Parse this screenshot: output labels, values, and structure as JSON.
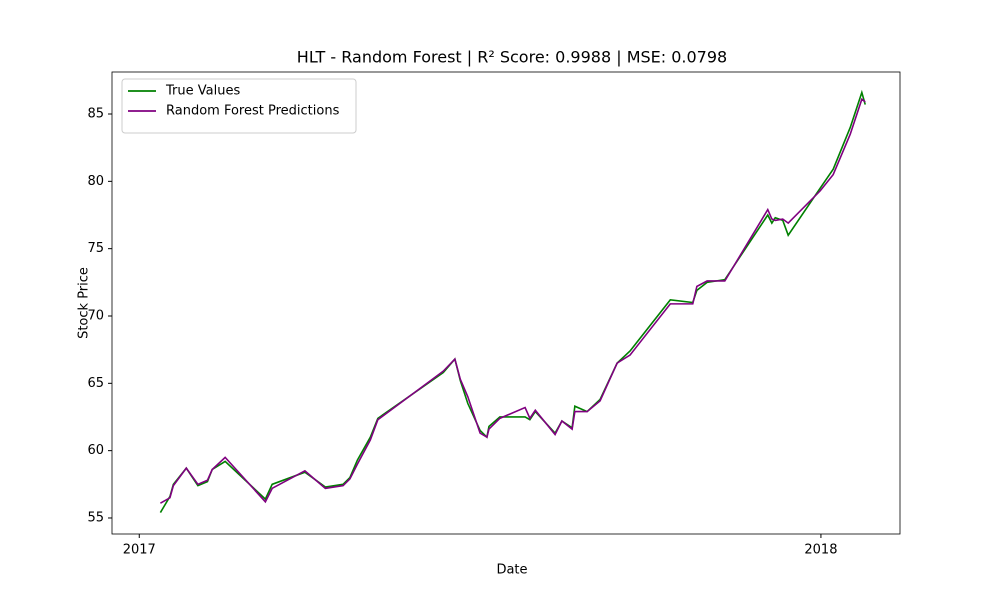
{
  "chart_data": {
    "type": "line",
    "title": "HLT - Random Forest | R² Score: 0.9988 | MSE: 0.0798",
    "x_label": "Date",
    "y_label": "Stock Price",
    "x": [
      2017.031,
      2017.045,
      2017.05,
      2017.069,
      2017.086,
      2017.1,
      2017.107,
      2017.126,
      2017.185,
      2017.195,
      2017.243,
      2017.273,
      2017.299,
      2017.309,
      2017.32,
      2017.339,
      2017.35,
      2017.446,
      2017.463,
      2017.471,
      2017.482,
      2017.5,
      2017.51,
      2017.513,
      2017.529,
      2017.566,
      2017.573,
      2017.581,
      2017.61,
      2017.62,
      2017.635,
      2017.639,
      2017.657,
      2017.676,
      2017.701,
      2017.72,
      2017.779,
      2017.812,
      2017.818,
      2017.833,
      2017.859,
      2017.922,
      2017.928,
      2017.933,
      2017.944,
      2017.952,
      2017.999,
      2018.018,
      2018.043,
      2018.06,
      2018.065
    ],
    "series": [
      {
        "name": "True Values",
        "color": "#008000",
        "values": [
          55.4,
          56.6,
          57.5,
          58.7,
          57.4,
          57.7,
          58.6,
          59.2,
          56.4,
          57.5,
          58.4,
          57.3,
          57.5,
          58.0,
          59.3,
          61.0,
          62.4,
          65.8,
          66.8,
          65.2,
          63.5,
          61.5,
          61.0,
          61.8,
          62.5,
          62.5,
          62.3,
          62.9,
          61.3,
          62.2,
          61.7,
          63.3,
          62.9,
          63.8,
          66.5,
          67.4,
          71.2,
          71.0,
          71.9,
          72.5,
          72.7,
          77.5,
          76.9,
          77.3,
          77.1,
          76.0,
          79.5,
          80.9,
          84.0,
          86.6,
          85.7
        ]
      },
      {
        "name": "Random Forest Predictions",
        "color": "#800080",
        "values": [
          56.1,
          56.5,
          57.4,
          58.7,
          57.5,
          57.8,
          58.6,
          59.5,
          56.2,
          57.2,
          58.5,
          57.2,
          57.4,
          57.9,
          59.0,
          60.8,
          62.3,
          65.9,
          66.8,
          65.3,
          64.0,
          61.3,
          61.0,
          61.6,
          62.4,
          63.2,
          62.4,
          63.0,
          61.2,
          62.2,
          61.6,
          62.9,
          62.9,
          63.7,
          66.5,
          67.1,
          70.9,
          70.9,
          72.2,
          72.6,
          72.6,
          77.9,
          77.2,
          77.1,
          77.2,
          76.9,
          79.3,
          80.5,
          83.5,
          86.1,
          85.9
        ]
      }
    ],
    "xlim": [
      2016.96,
      2018.116
    ],
    "xticks": [
      2017,
      2018
    ],
    "ylim": [
      53.81,
      88.12
    ],
    "yticks": [
      55,
      60,
      65,
      70,
      75,
      80,
      85
    ],
    "grid": false,
    "legend": "upper left"
  }
}
